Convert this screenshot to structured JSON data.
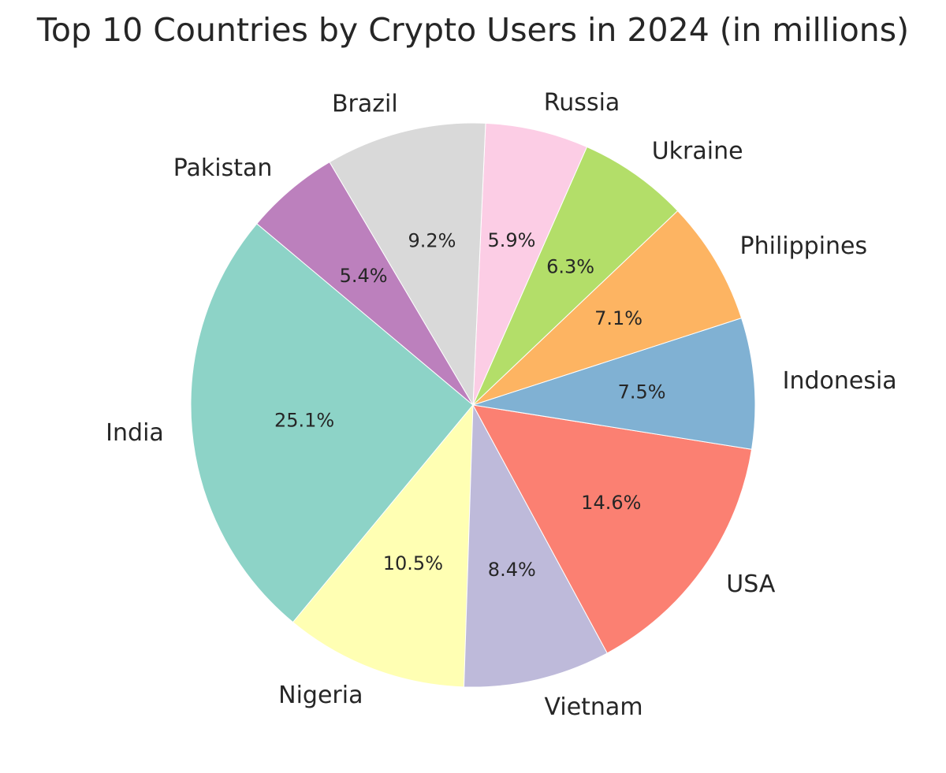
{
  "chart_data": {
    "type": "pie",
    "title": "Top 10 Countries by Crypto Users in 2024 (in millions)",
    "slices": [
      {
        "label": "India",
        "percent": 25.1,
        "percent_label": "25.1%",
        "color": "#8dd3c7"
      },
      {
        "label": "Nigeria",
        "percent": 10.5,
        "percent_label": "10.5%",
        "color": "#ffffb3"
      },
      {
        "label": "Vietnam",
        "percent": 8.4,
        "percent_label": "8.4%",
        "color": "#bebada"
      },
      {
        "label": "USA",
        "percent": 14.6,
        "percent_label": "14.6%",
        "color": "#fb8072"
      },
      {
        "label": "Indonesia",
        "percent": 7.5,
        "percent_label": "7.5%",
        "color": "#80b1d3"
      },
      {
        "label": "Philippines",
        "percent": 7.1,
        "percent_label": "7.1%",
        "color": "#fdb462"
      },
      {
        "label": "Ukraine",
        "percent": 6.3,
        "percent_label": "6.3%",
        "color": "#b3de69"
      },
      {
        "label": "Russia",
        "percent": 5.9,
        "percent_label": "5.9%",
        "color": "#fccde5"
      },
      {
        "label": "Brazil",
        "percent": 9.2,
        "percent_label": "9.2%",
        "color": "#d9d9d9"
      },
      {
        "label": "Pakistan",
        "percent": 5.4,
        "percent_label": "5.4%",
        "color": "#bc80bd"
      }
    ],
    "start_angle_deg": 140,
    "direction": "counterclockwise"
  }
}
